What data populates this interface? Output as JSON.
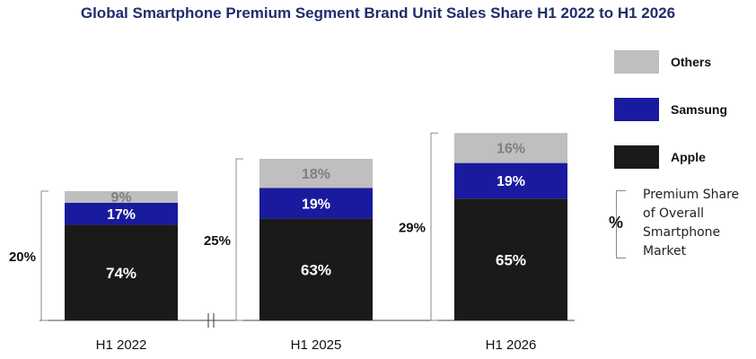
{
  "chart_data": {
    "type": "bar",
    "stacked": true,
    "title": "Global Smartphone Premium Segment Brand Unit Sales Share H1 2022 to H1 2026",
    "categories": [
      "H1 2022",
      "H1 2025",
      "H1 2026"
    ],
    "series": [
      {
        "name": "Apple",
        "values": [
          74,
          63,
          65
        ],
        "labels": [
          "74%",
          "63%",
          "65%"
        ],
        "color": "#1a1a1a",
        "label_color": "#ffffff"
      },
      {
        "name": "Samsung",
        "values": [
          17,
          19,
          19
        ],
        "labels": [
          "17%",
          "19%",
          "19%"
        ],
        "color": "#1a1a9e",
        "label_color": "#ffffff"
      },
      {
        "name": "Others",
        "values": [
          9,
          18,
          16
        ],
        "labels": [
          "9%",
          "18%",
          "16%"
        ],
        "color": "#bfbfbf",
        "label_color": "#7f7f7f"
      }
    ],
    "premium_share": {
      "values": [
        20,
        25,
        29
      ],
      "labels": [
        "20%",
        "25%",
        "29%"
      ]
    },
    "axis_break_between": [
      "H1 2022",
      "H1 2025"
    ],
    "legend": {
      "position": "right",
      "order": [
        "Others",
        "Samsung",
        "Apple"
      ],
      "premium_marker": "%",
      "premium_label": "Premium Share of Overall Smartphone Market"
    },
    "xlabel": "",
    "ylabel": "",
    "grid": false
  }
}
